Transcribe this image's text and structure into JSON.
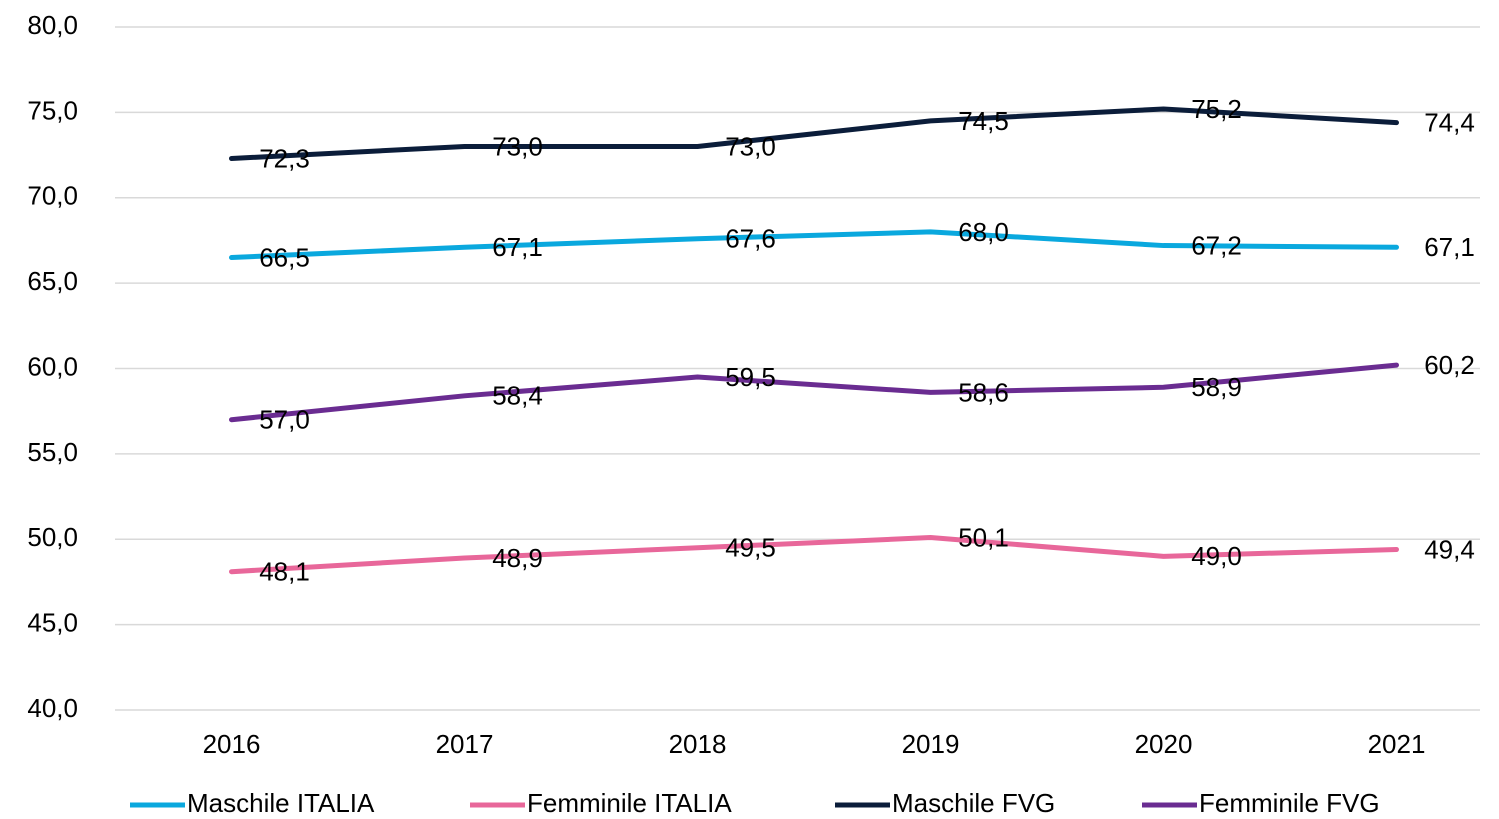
{
  "chart_data": {
    "type": "line",
    "categories": [
      "2016",
      "2017",
      "2018",
      "2019",
      "2020",
      "2021"
    ],
    "series": [
      {
        "name": "Maschile ITALIA",
        "color": "#0aa8de",
        "values": [
          66.5,
          67.1,
          67.6,
          68.0,
          67.2,
          67.1
        ],
        "value_labels": [
          "66,5",
          "67,1",
          "67,6",
          "68,0",
          "67,2",
          "67,1"
        ]
      },
      {
        "name": "Femminile ITALIA",
        "color": "#e8679a",
        "values": [
          48.1,
          48.9,
          49.5,
          50.1,
          49.0,
          49.4
        ],
        "value_labels": [
          "48,1",
          "48,9",
          "49,5",
          "50,1",
          "49,0",
          "49,4"
        ]
      },
      {
        "name": "Maschile FVG",
        "color": "#0b1d3a",
        "values": [
          72.3,
          73.0,
          73.0,
          74.5,
          75.2,
          74.4
        ],
        "value_labels": [
          "72,3",
          "73,0",
          "73,0",
          "74,5",
          "75,2",
          "74,4"
        ]
      },
      {
        "name": "Femminile FVG",
        "color": "#6a2c91",
        "values": [
          57.0,
          58.4,
          59.5,
          58.6,
          58.9,
          60.2
        ],
        "value_labels": [
          "57,0",
          "58,4",
          "59,5",
          "58,6",
          "58,9",
          "60,2"
        ]
      }
    ],
    "ylim": [
      40,
      80
    ],
    "yticks": [
      {
        "value": 40,
        "label": "40,0"
      },
      {
        "value": 45,
        "label": "45,0"
      },
      {
        "value": 50,
        "label": "50,0"
      },
      {
        "value": 55,
        "label": "55,0"
      },
      {
        "value": 60,
        "label": "60,0"
      },
      {
        "value": 65,
        "label": "65,0"
      },
      {
        "value": 70,
        "label": "70,0"
      },
      {
        "value": 75,
        "label": "75,0"
      },
      {
        "value": 80,
        "label": "80,0"
      }
    ],
    "grid": true,
    "legend": "bottom"
  }
}
